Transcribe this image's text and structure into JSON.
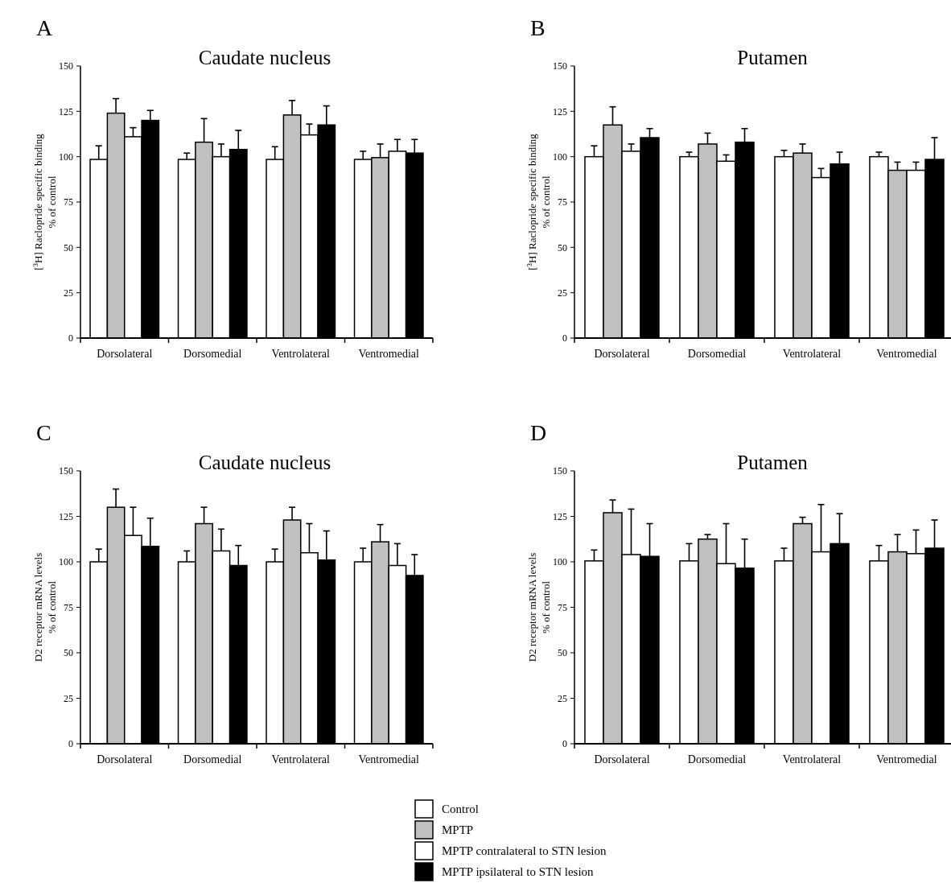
{
  "chart_data": [
    {
      "type": "bar",
      "title": "Caudate nucleus",
      "annotations": [
        "A"
      ],
      "ylabel": "[$^{3}$H] Raclopride specific binding\n% of control",
      "categories": [
        "Dorsolateral",
        "Dorsomedial",
        "Ventrolateral",
        "Ventromedial"
      ],
      "ylim": [
        0,
        150
      ],
      "yticks": [
        0,
        25,
        50,
        75,
        100,
        125,
        150
      ],
      "series": [
        {
          "color": "#ffffff",
          "values": [
            98.5,
            98.5,
            98.5,
            98.5
          ],
          "errors": [
            [
              98.5,
              106
            ],
            [
              98.5,
              102
            ],
            [
              98.5,
              105.5
            ],
            [
              98.5,
              103
            ]
          ]
        },
        {
          "color": "#c0c0c0",
          "values": [
            124,
            108,
            123,
            99.5
          ],
          "errors": [
            [
              124,
              132
            ],
            [
              108,
              121
            ],
            [
              123,
              131
            ],
            [
              99.5,
              107
            ]
          ]
        },
        {
          "color": "#ffffff",
          "values": [
            111,
            100,
            112,
            103
          ],
          "errors": [
            [
              111,
              116
            ],
            [
              100,
              107
            ],
            [
              112,
              118
            ],
            [
              103,
              109.5
            ]
          ]
        },
        {
          "color": "#000000",
          "values": [
            120,
            104,
            117.5,
            102
          ],
          "errors": [
            [
              120,
              125.5
            ],
            [
              104,
              114.5
            ],
            [
              117.5,
              128
            ],
            [
              102,
              109.5
            ]
          ]
        }
      ]
    },
    {
      "type": "bar",
      "title": "Putamen",
      "annotations": [
        "B"
      ],
      "ylabel": "[$^{3}$H] Raclopride specific binding\n% of control",
      "categories": [
        "Dorsolateral",
        "Dorsomedial",
        "Ventrolateral",
        "Ventromedial"
      ],
      "ylim": [
        0,
        150
      ],
      "yticks": [
        0,
        25,
        50,
        75,
        100,
        125,
        150
      ],
      "series": [
        {
          "color": "#ffffff",
          "values": [
            100,
            100,
            100,
            100
          ],
          "errors": [
            [
              100,
              106
            ],
            [
              100,
              102.5
            ],
            [
              100,
              103.5
            ],
            [
              100,
              102.5
            ]
          ]
        },
        {
          "color": "#c0c0c0",
          "values": [
            117.5,
            107,
            102,
            92.5
          ],
          "errors": [
            [
              117.5,
              127.5
            ],
            [
              107,
              113
            ],
            [
              102,
              107
            ],
            [
              92.5,
              97
            ]
          ]
        },
        {
          "color": "#ffffff",
          "values": [
            103,
            97.5,
            88.5,
            92.5
          ],
          "errors": [
            [
              103,
              107
            ],
            [
              97.5,
              101
            ],
            [
              88.5,
              93.5
            ],
            [
              92.5,
              97
            ]
          ]
        },
        {
          "color": "#000000",
          "values": [
            110.5,
            108,
            96,
            98.5
          ],
          "errors": [
            [
              110.5,
              115.5
            ],
            [
              108,
              115.5
            ],
            [
              96,
              102.5
            ],
            [
              98.5,
              110.5
            ]
          ]
        }
      ]
    },
    {
      "type": "bar",
      "title": "Caudate nucleus",
      "annotations": [
        "C"
      ],
      "ylabel": "D2 receptor mRNA levels\n% of control",
      "categories": [
        "Dorsolateral",
        "Dorsomedial",
        "Ventrolateral",
        "Ventromedial"
      ],
      "ylim": [
        0,
        150
      ],
      "yticks": [
        0,
        25,
        50,
        75,
        100,
        125,
        150
      ],
      "series": [
        {
          "color": "#ffffff",
          "values": [
            100,
            100,
            100,
            100
          ],
          "errors": [
            [
              100,
              107
            ],
            [
              100,
              106
            ],
            [
              100,
              107
            ],
            [
              100,
              107.5
            ]
          ]
        },
        {
          "color": "#c0c0c0",
          "values": [
            130,
            121,
            123,
            111
          ],
          "errors": [
            [
              130,
              140
            ],
            [
              121,
              130
            ],
            [
              123,
              130
            ],
            [
              111,
              120.5
            ]
          ]
        },
        {
          "color": "#ffffff",
          "values": [
            114.5,
            106,
            105,
            98
          ],
          "errors": [
            [
              114.5,
              130
            ],
            [
              106,
              118
            ],
            [
              105,
              121
            ],
            [
              98,
              110
            ]
          ]
        },
        {
          "color": "#000000",
          "values": [
            108.5,
            98,
            101,
            92.5
          ],
          "errors": [
            [
              108.5,
              124
            ],
            [
              98,
              109
            ],
            [
              101,
              117
            ],
            [
              92.5,
              104
            ]
          ]
        }
      ]
    },
    {
      "type": "bar",
      "title": "Putamen",
      "annotations": [
        "D"
      ],
      "ylabel": "D2 receptor mRNA levels\n% of control",
      "categories": [
        "Dorsolateral",
        "Dorsomedial",
        "Ventrolateral",
        "Ventromedial"
      ],
      "ylim": [
        0,
        150
      ],
      "yticks": [
        0,
        25,
        50,
        75,
        100,
        125,
        150
      ],
      "legend": "bottom",
      "series": [
        {
          "name": "Control",
          "color": "#ffffff",
          "values": [
            100.5,
            100.5,
            100.5,
            100.5
          ],
          "errors": [
            [
              100.5,
              106.5
            ],
            [
              100.5,
              110
            ],
            [
              100.5,
              107.5
            ],
            [
              100.5,
              109
            ]
          ]
        },
        {
          "name": "MPTP",
          "color": "#c0c0c0",
          "values": [
            127,
            112.5,
            121,
            105.5
          ],
          "errors": [
            [
              127,
              134
            ],
            [
              112.5,
              115
            ],
            [
              121,
              124.5
            ],
            [
              105.5,
              115
            ]
          ]
        },
        {
          "name": "MPTP contralateral to STN lesion",
          "color": "#ffffff",
          "values": [
            104,
            99,
            105.5,
            104.5
          ],
          "errors": [
            [
              104,
              129
            ],
            [
              99,
              121
            ],
            [
              105.5,
              131.5
            ],
            [
              104.5,
              117.5
            ]
          ]
        },
        {
          "name": "MPTP ipsilateral to STN lesion",
          "color": "#000000",
          "values": [
            103,
            96.5,
            110,
            107.5
          ],
          "errors": [
            [
              103,
              121
            ],
            [
              96.5,
              112.5
            ],
            [
              110,
              126.5
            ],
            [
              107.5,
              123
            ]
          ]
        }
      ]
    }
  ]
}
